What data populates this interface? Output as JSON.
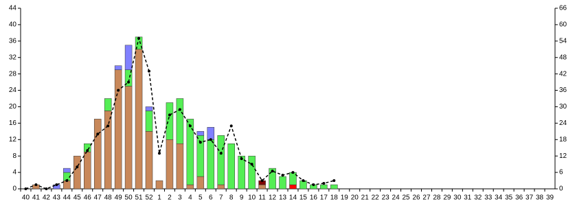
{
  "chart_data": {
    "type": "bar",
    "stacked": true,
    "categories": [
      "40",
      "41",
      "42",
      "43",
      "44",
      "45",
      "46",
      "47",
      "48",
      "49",
      "50",
      "51",
      "52",
      "1",
      "2",
      "3",
      "4",
      "5",
      "6",
      "7",
      "8",
      "9",
      "10",
      "11",
      "12",
      "13",
      "14",
      "15",
      "16",
      "17",
      "18",
      "19",
      "20",
      "21",
      "22",
      "23",
      "24",
      "25",
      "26",
      "27",
      "28",
      "29",
      "30",
      "31",
      "32",
      "33",
      "34",
      "35",
      "36",
      "37",
      "38",
      "39"
    ],
    "series": [
      {
        "color": "#ff0000",
        "values": [
          0,
          0,
          0,
          0,
          0,
          0,
          0,
          0,
          0,
          0,
          0,
          0,
          0,
          0,
          0,
          0,
          0,
          0,
          0,
          0,
          0,
          0,
          0,
          0,
          0,
          0,
          1,
          0,
          0,
          0,
          0,
          0,
          0,
          0,
          0,
          0,
          0,
          0,
          0,
          0,
          0,
          0,
          0,
          0,
          0,
          0,
          0,
          0,
          0,
          0,
          0,
          0
        ]
      },
      {
        "color": "#c8885a",
        "values": [
          0,
          1,
          0,
          0,
          2,
          8,
          9,
          17,
          19,
          29,
          25,
          34,
          14,
          2,
          12,
          11,
          1,
          3,
          0,
          1,
          0,
          0,
          0,
          1,
          0,
          0,
          0,
          0,
          0,
          0,
          0,
          0,
          0,
          0,
          0,
          0,
          0,
          0,
          0,
          0,
          0,
          0,
          0,
          0,
          0,
          0,
          0,
          0,
          0,
          0,
          0,
          0
        ]
      },
      {
        "color": "#55ee55",
        "values": [
          0,
          0,
          0,
          0,
          2,
          0,
          2,
          0,
          3,
          0,
          4,
          3,
          5,
          0,
          9,
          11,
          16,
          10,
          12,
          12,
          11,
          8,
          8,
          0,
          5,
          3,
          3,
          2,
          1,
          1,
          1,
          0,
          0,
          0,
          0,
          0,
          0,
          0,
          0,
          0,
          0,
          0,
          0,
          0,
          0,
          0,
          0,
          0,
          0,
          0,
          0,
          0
        ]
      },
      {
        "color": "#8080ff",
        "values": [
          0,
          0,
          0,
          1,
          1,
          0,
          0,
          0,
          0,
          1,
          6,
          0,
          1,
          0,
          0,
          0,
          0,
          1,
          3,
          0,
          0,
          0,
          0,
          0,
          0,
          0,
          0,
          0,
          0,
          0,
          0,
          0,
          0,
          0,
          0,
          0,
          0,
          0,
          0,
          0,
          0,
          0,
          0,
          0,
          0,
          0,
          0,
          0,
          0,
          0,
          0,
          0
        ]
      },
      {
        "color": "#800000",
        "values": [
          0,
          0,
          0,
          0,
          0,
          0,
          0,
          0,
          0,
          0,
          0,
          0,
          0,
          0,
          0,
          0,
          0,
          0,
          0,
          0,
          0,
          0,
          0,
          1,
          0,
          0,
          0,
          0,
          0,
          0,
          0,
          0,
          0,
          0,
          0,
          0,
          0,
          0,
          0,
          0,
          0,
          0,
          0,
          0,
          0,
          0,
          0,
          0,
          0,
          0,
          0,
          0
        ]
      },
      {
        "type": "line",
        "axis": "y2",
        "color": "#000000",
        "dashed": true,
        "values": [
          0,
          1.5,
          0,
          1.5,
          3,
          8,
          14,
          20,
          23,
          36,
          39,
          55,
          43,
          13,
          27,
          29,
          23,
          17,
          18,
          13,
          23,
          11,
          9,
          3,
          6.5,
          5,
          6,
          3,
          1.5,
          2,
          3,
          null,
          null,
          null,
          null,
          null,
          null,
          null,
          null,
          null,
          null,
          null,
          null,
          null,
          null,
          null,
          null,
          null,
          null,
          null,
          null,
          null
        ]
      }
    ],
    "ylim": [
      0,
      44
    ],
    "yticks": [
      0,
      4,
      8,
      12,
      16,
      20,
      24,
      28,
      32,
      36,
      40,
      44
    ],
    "y2lim": [
      0,
      66
    ],
    "y2ticks": [
      0,
      6,
      12,
      18,
      24,
      30,
      36,
      42,
      48,
      54,
      60,
      66
    ]
  }
}
